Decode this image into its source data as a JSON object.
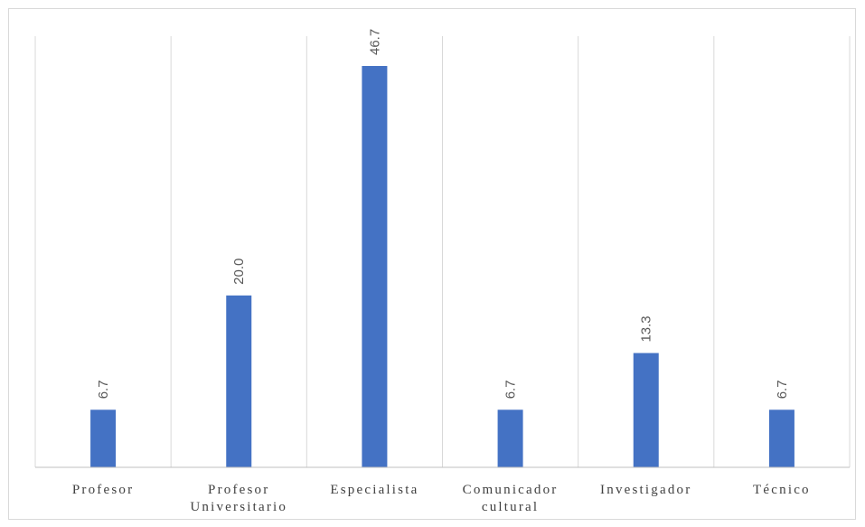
{
  "chart_data": {
    "type": "bar",
    "categories": [
      [
        "Profesor"
      ],
      [
        "Profesor",
        "Universitario"
      ],
      [
        "Especialista"
      ],
      [
        "Comunicador",
        "cultural"
      ],
      [
        "Investigador"
      ],
      [
        "Técnico"
      ]
    ],
    "values": [
      6.7,
      20.0,
      46.7,
      6.7,
      13.3,
      6.7
    ],
    "value_labels": [
      "6.7",
      "20.0",
      "46.7",
      "6.7",
      "13.3",
      "6.7"
    ],
    "title": "",
    "xlabel": "",
    "ylabel": "",
    "ylim": [
      0,
      50
    ],
    "grid": "vertical-separators",
    "legend": "none",
    "bar_color": "#4472c4",
    "grid_color": "#d9d9d9",
    "axis_color": "#bfbfbf"
  }
}
